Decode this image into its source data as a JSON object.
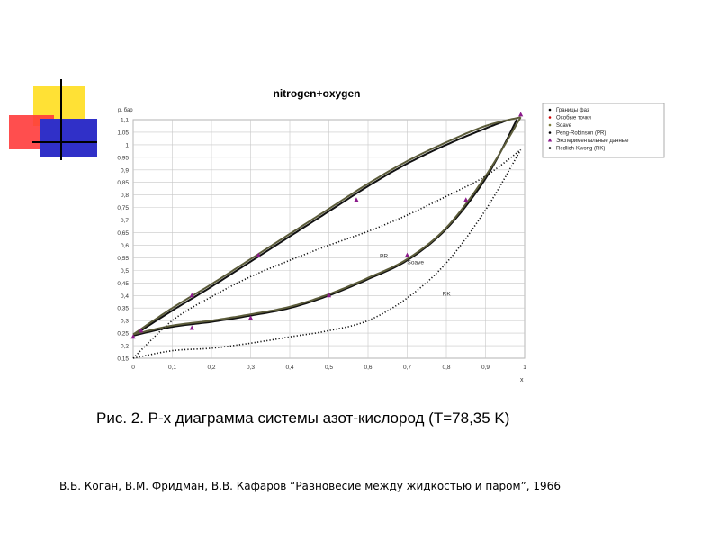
{
  "slide": {
    "caption": "Рис. 2. P-x диаграмма системы азот-кислород (T=78,35 K)",
    "reference": "В.Б. Коган, В.М. Фридман, В.В. Кафаров “Равновесие между жидкостью и паром”, 1966",
    "decoration_colors": {
      "yellow": "#ffe135",
      "red": "#ff3b3b",
      "blue": "#3030c8"
    }
  },
  "chart_data": {
    "type": "line",
    "title": "nitrogen+oxygen",
    "ylabel": "p, бар",
    "xlabel": "x",
    "xlim": [
      0,
      1
    ],
    "ylim": [
      0.15,
      1.1
    ],
    "x_ticks": [
      "0",
      "0,1",
      "0,2",
      "0,3",
      "0,4",
      "0,5",
      "0,6",
      "0,7",
      "0,8",
      "0,9",
      "1"
    ],
    "y_ticks": [
      "0,15",
      "0,2",
      "0,25",
      "0,3",
      "0,35",
      "0,4",
      "0,45",
      "0,5",
      "0,55",
      "0,6",
      "0,65",
      "0,7",
      "0,75",
      "0,8",
      "0,85",
      "0,9",
      "0,95",
      "1",
      "1,05",
      "1,1"
    ],
    "grid": true,
    "legend_position": "right",
    "legend": [
      {
        "label": "Границы фаз",
        "color": "#000000",
        "marker": "dot"
      },
      {
        "label": "Особые точки",
        "color": "#cc0000",
        "marker": "dot"
      },
      {
        "label": "Soave",
        "color": "#7a7a3a",
        "marker": "dot"
      },
      {
        "label": "Peng-Robinson (PR)",
        "color": "#000000",
        "marker": "dot"
      },
      {
        "label": "Экспериментальные данные",
        "color": "#8b1a8b",
        "marker": "triangle"
      },
      {
        "label": "Redlich-Kwong (RK)",
        "color": "#000000",
        "marker": "dot"
      }
    ],
    "annotations": [
      "PR",
      "Soave",
      "RK"
    ],
    "series": [
      {
        "label_annotation": "PR",
        "style": "dense",
        "bubble": [
          [
            0,
            0.24
          ],
          [
            0.1,
            0.34
          ],
          [
            0.2,
            0.435
          ],
          [
            0.3,
            0.535
          ],
          [
            0.4,
            0.635
          ],
          [
            0.5,
            0.735
          ],
          [
            0.6,
            0.835
          ],
          [
            0.7,
            0.925
          ],
          [
            0.8,
            1.0
          ],
          [
            0.9,
            1.065
          ],
          [
            0.96,
            1.1
          ]
        ],
        "dew": [
          [
            0,
            0.24
          ],
          [
            0.1,
            0.275
          ],
          [
            0.2,
            0.295
          ],
          [
            0.3,
            0.32
          ],
          [
            0.4,
            0.35
          ],
          [
            0.5,
            0.4
          ],
          [
            0.6,
            0.465
          ],
          [
            0.7,
            0.54
          ],
          [
            0.8,
            0.665
          ],
          [
            0.9,
            0.865
          ],
          [
            0.98,
            1.1
          ]
        ]
      },
      {
        "label_annotation": "Soave",
        "style": "dense",
        "bubble": [
          [
            0,
            0.245
          ],
          [
            0.1,
            0.35
          ],
          [
            0.2,
            0.445
          ],
          [
            0.3,
            0.545
          ],
          [
            0.4,
            0.645
          ],
          [
            0.5,
            0.745
          ],
          [
            0.6,
            0.845
          ],
          [
            0.7,
            0.935
          ],
          [
            0.8,
            1.01
          ],
          [
            0.9,
            1.075
          ],
          [
            0.99,
            1.11
          ]
        ],
        "dew": [
          [
            0,
            0.245
          ],
          [
            0.1,
            0.28
          ],
          [
            0.2,
            0.3
          ],
          [
            0.3,
            0.325
          ],
          [
            0.4,
            0.355
          ],
          [
            0.5,
            0.405
          ],
          [
            0.6,
            0.47
          ],
          [
            0.7,
            0.545
          ],
          [
            0.8,
            0.67
          ],
          [
            0.9,
            0.875
          ],
          [
            0.99,
            1.11
          ]
        ]
      },
      {
        "label_annotation": "RK",
        "style": "dotted",
        "bubble": [
          [
            0,
            0.15
          ],
          [
            0.1,
            0.3
          ],
          [
            0.2,
            0.395
          ],
          [
            0.3,
            0.475
          ],
          [
            0.4,
            0.54
          ],
          [
            0.5,
            0.6
          ],
          [
            0.6,
            0.655
          ],
          [
            0.7,
            0.72
          ],
          [
            0.8,
            0.795
          ],
          [
            0.9,
            0.875
          ],
          [
            0.99,
            0.98
          ]
        ],
        "dew": [
          [
            0,
            0.15
          ],
          [
            0.1,
            0.18
          ],
          [
            0.2,
            0.19
          ],
          [
            0.3,
            0.21
          ],
          [
            0.4,
            0.235
          ],
          [
            0.5,
            0.26
          ],
          [
            0.6,
            0.3
          ],
          [
            0.7,
            0.39
          ],
          [
            0.8,
            0.53
          ],
          [
            0.9,
            0.74
          ],
          [
            0.99,
            0.98
          ]
        ]
      }
    ],
    "experimental_points": [
      [
        0,
        0.235
      ],
      [
        0.02,
        0.26
      ],
      [
        0.15,
        0.27
      ],
      [
        0.15,
        0.4
      ],
      [
        0.3,
        0.31
      ],
      [
        0.32,
        0.56
      ],
      [
        0.5,
        0.4
      ],
      [
        0.57,
        0.78
      ],
      [
        0.7,
        0.56
      ],
      [
        0.85,
        0.78
      ],
      [
        0.99,
        1.12
      ]
    ]
  }
}
